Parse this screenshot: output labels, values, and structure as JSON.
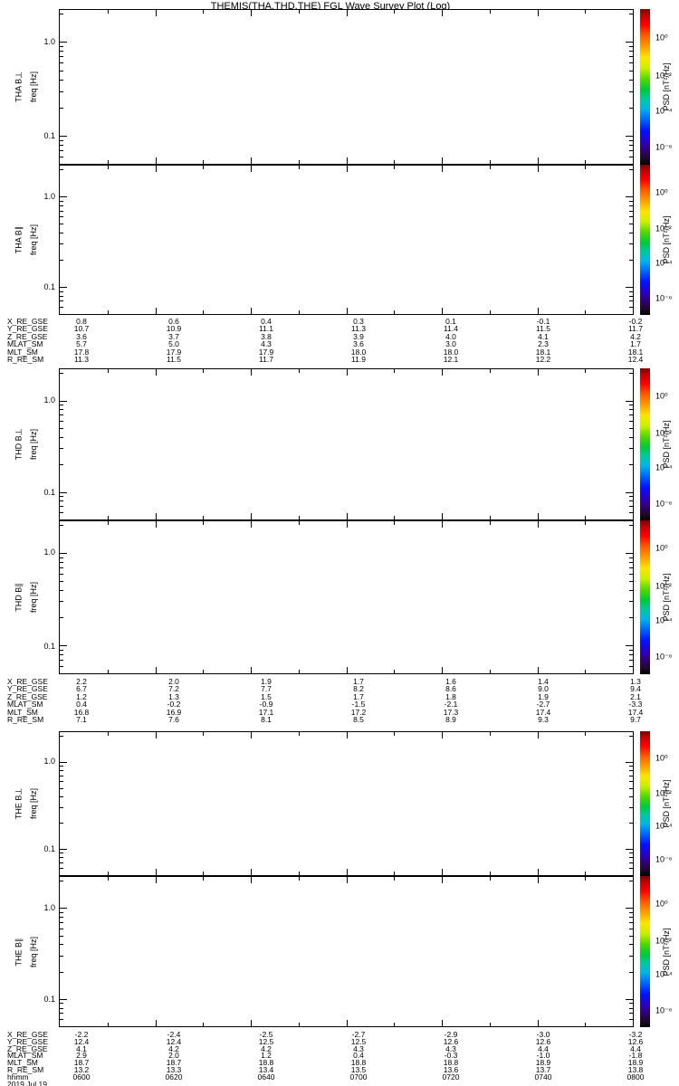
{
  "title": "THEMIS(THA,THD,THE) FGL Wave Survey Plot (Log)",
  "colors": {
    "background": "#ffffff",
    "frame": "#000000",
    "text": "#000000"
  },
  "colorbar": {
    "label": "PSD [nT²/Hz]",
    "tick_labels": [
      "10⁰",
      "10⁻²",
      "10⁻⁴",
      "10⁻⁶"
    ]
  },
  "panels": [
    {
      "label": "THA B⊥",
      "axis_label": "freq [Hz]",
      "ytick_labels": [
        "1.0",
        "0.1"
      ]
    },
    {
      "label": "THA B∥",
      "axis_label": "freq [Hz]",
      "ytick_labels": [
        "1.0",
        "0.1"
      ]
    },
    {
      "label": "THD B⊥",
      "axis_label": "freq [Hz]",
      "ytick_labels": [
        "1.0",
        "0.1"
      ]
    },
    {
      "label": "THD B∥",
      "axis_label": "freq [Hz]",
      "ytick_labels": [
        "1.0",
        "0.1"
      ]
    },
    {
      "label": "THE B⊥",
      "axis_label": "freq [Hz]",
      "ytick_labels": [
        "1.0",
        "0.1"
      ]
    },
    {
      "label": "THE B∥",
      "axis_label": "freq [Hz]",
      "ytick_labels": [
        "1.0",
        "0.1"
      ]
    }
  ],
  "ephemeris": {
    "row_labels": [
      "X_RE_GSE",
      "Y_RE_GSE",
      "Z_RE_GSE",
      "MLAT_SM",
      "MLT_SM",
      "R_RE_SM"
    ],
    "groups": [
      {
        "spacecraft": "THA",
        "values": [
          [
            "0.8",
            "0.6",
            "0.4",
            "0.3",
            "0.1",
            "-0.1",
            "-0.2"
          ],
          [
            "10.7",
            "10.9",
            "11.1",
            "11.3",
            "11.4",
            "11.5",
            "11.7"
          ],
          [
            "3.6",
            "3.7",
            "3.8",
            "3.9",
            "4.0",
            "4.1",
            "4.2"
          ],
          [
            "5.7",
            "5.0",
            "4.3",
            "3.6",
            "3.0",
            "2.3",
            "1.7"
          ],
          [
            "17.8",
            "17.9",
            "17.9",
            "18.0",
            "18.0",
            "18.1",
            "18.1"
          ],
          [
            "11.3",
            "11.5",
            "11.7",
            "11.9",
            "12.1",
            "12.2",
            "12.4"
          ]
        ]
      },
      {
        "spacecraft": "THD",
        "values": [
          [
            "2.2",
            "2.0",
            "1.9",
            "1.7",
            "1.6",
            "1.4",
            "1.3"
          ],
          [
            "6.7",
            "7.2",
            "7.7",
            "8.2",
            "8.6",
            "9.0",
            "9.4"
          ],
          [
            "1.2",
            "1.3",
            "1.5",
            "1.7",
            "1.8",
            "1.9",
            "2.1"
          ],
          [
            "0.4",
            "-0.2",
            "-0.9",
            "-1.5",
            "-2.1",
            "-2.7",
            "-3.3"
          ],
          [
            "16.8",
            "16.9",
            "17.1",
            "17.2",
            "17.3",
            "17.4",
            "17.4"
          ],
          [
            "7.1",
            "7.6",
            "8.1",
            "8.5",
            "8.9",
            "9.3",
            "9.7"
          ]
        ]
      },
      {
        "spacecraft": "THE",
        "values": [
          [
            "-2.2",
            "-2.4",
            "-2.5",
            "-2.7",
            "-2.9",
            "-3.0",
            "-3.2"
          ],
          [
            "12.4",
            "12.4",
            "12.5",
            "12.5",
            "12.6",
            "12.6",
            "12.6"
          ],
          [
            "4.1",
            "4.2",
            "4.2",
            "4.3",
            "4.3",
            "4.4",
            "4.4"
          ],
          [
            "2.9",
            "2.0",
            "1.2",
            "0.4",
            "-0.3",
            "-1.0",
            "-1.8"
          ],
          [
            "18.7",
            "18.7",
            "18.8",
            "18.8",
            "18.8",
            "18.9",
            "18.9"
          ],
          [
            "13.2",
            "13.3",
            "13.4",
            "13.5",
            "13.6",
            "13.7",
            "13.8"
          ]
        ]
      }
    ],
    "time_row_label": "hhmm",
    "times": [
      "0600",
      "0620",
      "0640",
      "0700",
      "0720",
      "0740",
      "0800"
    ],
    "date": "2019 Jul 19"
  },
  "chart_data": {
    "type": "heatmap",
    "title": "THEMIS(THA,THD,THE) FGL Wave Survey Plot (Log)",
    "subtype": "dynamic-spectrogram-survey",
    "x_axis": {
      "label": "hhmm",
      "start": "0600",
      "end": "0800",
      "tick_labels": [
        "0600",
        "0620",
        "0640",
        "0700",
        "0720",
        "0740",
        "0800"
      ],
      "minor_tick_minutes": 10,
      "date": "2019 Jul 19"
    },
    "panels": [
      {
        "label": "THA B⊥",
        "ylabel": "freq [Hz]",
        "yscale": "log",
        "ylim": [
          0.05,
          2.2
        ],
        "ytick_labels": [
          "1.0",
          "0.1"
        ],
        "data_points": []
      },
      {
        "label": "THA B∥",
        "ylabel": "freq [Hz]",
        "yscale": "log",
        "ylim": [
          0.05,
          2.2
        ],
        "ytick_labels": [
          "1.0",
          "0.1"
        ],
        "data_points": []
      },
      {
        "label": "THD B⊥",
        "ylabel": "freq [Hz]",
        "yscale": "log",
        "ylim": [
          0.05,
          2.2
        ],
        "ytick_labels": [
          "1.0",
          "0.1"
        ],
        "data_points": []
      },
      {
        "label": "THD B∥",
        "ylabel": "freq [Hz]",
        "yscale": "log",
        "ylim": [
          0.05,
          2.2
        ],
        "ytick_labels": [
          "1.0",
          "0.1"
        ],
        "data_points": []
      },
      {
        "label": "THE B⊥",
        "ylabel": "freq [Hz]",
        "yscale": "log",
        "ylim": [
          0.05,
          2.2
        ],
        "ytick_labels": [
          "1.0",
          "0.1"
        ],
        "data_points": []
      },
      {
        "label": "THE B∥",
        "ylabel": "freq [Hz]",
        "yscale": "log",
        "ylim": [
          0.05,
          2.2
        ],
        "ytick_labels": [
          "1.0",
          "0.1"
        ],
        "data_points": []
      }
    ],
    "colorbar": {
      "label": "PSD [nT²/Hz]",
      "scale": "log",
      "tick_labels": [
        "10⁰",
        "10⁻²",
        "10⁻⁴",
        "10⁻⁶"
      ],
      "colormap": "rainbow"
    },
    "note": "All six spectrogram panels are blank (no PSD values plotted); ephemeris tables are shown beneath each spacecraft pair."
  }
}
